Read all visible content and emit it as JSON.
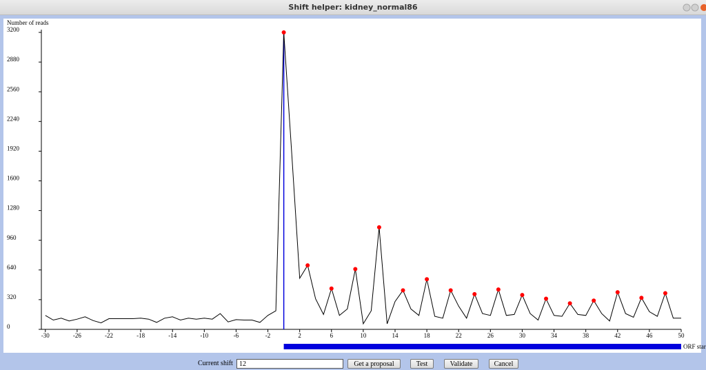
{
  "window": {
    "title": "Shift helper: kidney_normal86"
  },
  "controls": {
    "shift_label": "Current shift",
    "shift_value": "12",
    "buttons": [
      "Get a proposal",
      "Test",
      "Validate",
      "Cancel"
    ]
  },
  "chart_data": {
    "type": "line",
    "y_label": "Number of reads",
    "x_label": "ORF start",
    "series": [
      {
        "color": "#000000",
        "markers": false,
        "x": [
          -30,
          -29,
          -28,
          -27,
          -26,
          -25,
          -24,
          -23,
          -22,
          -21,
          -20,
          -19,
          -18,
          -17,
          -16,
          -15,
          -14,
          -13,
          -12,
          -11,
          -10,
          -9,
          -8,
          -7,
          -6,
          -5,
          -4,
          -3,
          -2,
          -1,
          0,
          1,
          2,
          3,
          4,
          5,
          6,
          7,
          8,
          9,
          10,
          11,
          12,
          13,
          14,
          15,
          16,
          17,
          18,
          19,
          20,
          21,
          22,
          23,
          24,
          25,
          26,
          27,
          28,
          29,
          30,
          31,
          32,
          33,
          34,
          35,
          36,
          37,
          38,
          39,
          40,
          41,
          42,
          43,
          44,
          45,
          46,
          47,
          48,
          49,
          50
        ],
        "values": [
          150,
          100,
          120,
          90,
          110,
          135,
          95,
          70,
          115,
          115,
          115,
          115,
          120,
          110,
          75,
          120,
          135,
          100,
          120,
          110,
          120,
          110,
          170,
          80,
          105,
          100,
          100,
          75,
          150,
          200,
          3200,
          1900,
          550,
          690,
          330,
          160,
          440,
          150,
          220,
          650,
          60,
          200,
          1100,
          60,
          300,
          420,
          220,
          150,
          540,
          140,
          120,
          420,
          250,
          120,
          380,
          170,
          150,
          430,
          150,
          160,
          370,
          170,
          100,
          330,
          150,
          140,
          280,
          160,
          150,
          310,
          170,
          90,
          400,
          170,
          130,
          340,
          190,
          140,
          390,
          120,
          120
        ]
      },
      {
        "color": "#ff0000",
        "markers": true,
        "line": false,
        "x": [
          0,
          3,
          6,
          9,
          12,
          15,
          18,
          21,
          24,
          27,
          30,
          33,
          36,
          39,
          42,
          45,
          48
        ],
        "values": [
          3200,
          690,
          440,
          650,
          1100,
          420,
          540,
          420,
          380,
          430,
          370,
          330,
          280,
          310,
          400,
          340,
          390
        ]
      }
    ],
    "xlim": [
      -30.5,
      50
    ],
    "ylim": [
      0,
      3200
    ],
    "xticks": [
      -30,
      -26,
      -22,
      -18,
      -14,
      -10,
      -6,
      -2,
      2,
      6,
      10,
      14,
      18,
      22,
      26,
      30,
      34,
      38,
      42,
      46,
      50
    ],
    "yticks": [
      0,
      320,
      640,
      960,
      1280,
      1600,
      1920,
      2240,
      2560,
      2880,
      3200
    ],
    "marker_x": 0,
    "marker_color": "#0000dd",
    "band": [
      0,
      50
    ],
    "band_color": "#0000dd"
  }
}
